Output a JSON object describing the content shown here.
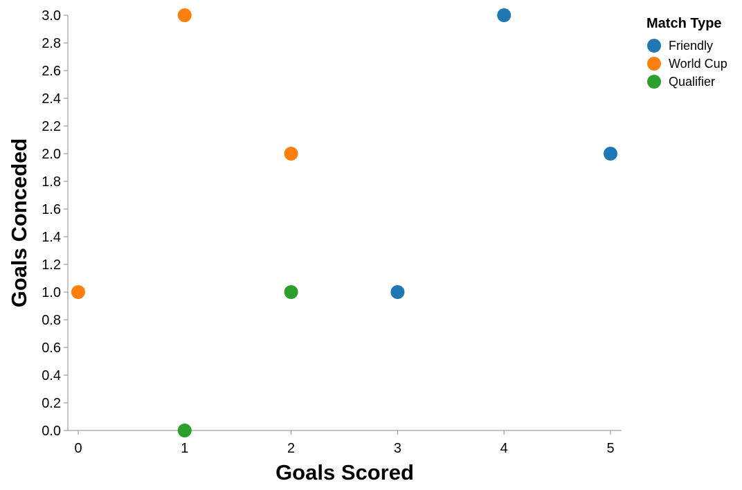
{
  "chart_data": {
    "type": "scatter",
    "xlabel": "Goals Scored",
    "ylabel": "Goals Conceded",
    "xlim": [
      0,
      5
    ],
    "ylim": [
      0,
      3
    ],
    "x_ticks": [
      "0",
      "1",
      "2",
      "3",
      "4",
      "5"
    ],
    "y_ticks": [
      "0.0",
      "0.2",
      "0.4",
      "0.6",
      "0.8",
      "1.0",
      "1.2",
      "1.4",
      "1.6",
      "1.8",
      "2.0",
      "2.2",
      "2.4",
      "2.6",
      "2.8",
      "3.0"
    ],
    "grid": false,
    "legend": {
      "title": "Match Type",
      "placement": "right"
    },
    "series": [
      {
        "name": "Friendly",
        "color": "#1f77b4",
        "points": [
          {
            "x": 4,
            "y": 3
          },
          {
            "x": 5,
            "y": 2
          },
          {
            "x": 3,
            "y": 1
          }
        ]
      },
      {
        "name": "World Cup",
        "color": "#ff7f0e",
        "points": [
          {
            "x": 1,
            "y": 3
          },
          {
            "x": 2,
            "y": 2
          },
          {
            "x": 0,
            "y": 1
          }
        ]
      },
      {
        "name": "Qualifier",
        "color": "#2ca02c",
        "points": [
          {
            "x": 2,
            "y": 1
          },
          {
            "x": 1,
            "y": 0
          }
        ]
      }
    ]
  }
}
